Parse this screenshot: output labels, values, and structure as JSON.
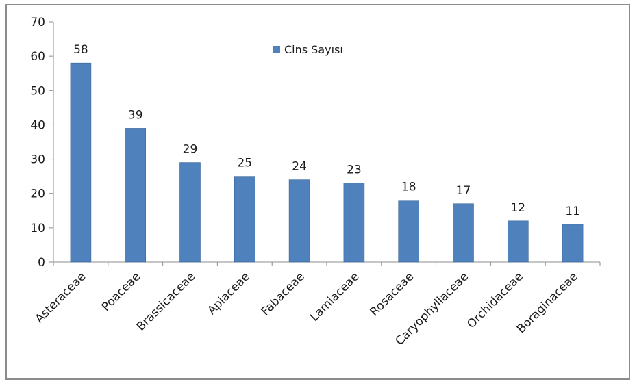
{
  "chart_data": {
    "type": "bar",
    "categories": [
      "Asteraceae",
      "Poaceae",
      "Brassicaceae",
      "Apiaceae",
      "Fabaceae",
      "Lamiaceae",
      "Rosaceae",
      "Caryophyllaceae",
      "Orchidaceae",
      "Boraginaceae"
    ],
    "series": [
      {
        "name": "Cins Sayısı",
        "values": [
          58,
          39,
          29,
          25,
          24,
          23,
          18,
          17,
          12,
          11
        ],
        "color": "#4f81bd"
      }
    ],
    "ylim": [
      0,
      70
    ],
    "yticks": [
      0,
      10,
      20,
      30,
      40,
      50,
      60,
      70
    ],
    "grid": false,
    "legend_position": "top-center",
    "data_labels": true
  }
}
